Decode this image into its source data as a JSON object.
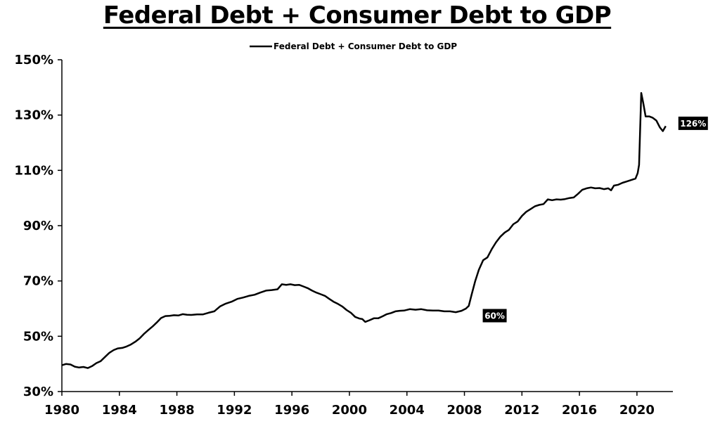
{
  "chart_data": {
    "type": "line",
    "title": "Federal Debt + Consumer Debt to GDP",
    "xlabel": "",
    "ylabel": "",
    "xlim": [
      1980,
      2022.5
    ],
    "ylim": [
      30,
      150
    ],
    "x_ticks": [
      1980,
      1984,
      1988,
      1992,
      1996,
      2000,
      2004,
      2008,
      2012,
      2016,
      2020
    ],
    "x_tick_labels": [
      "1980",
      "1984",
      "1988",
      "1992",
      "1996",
      "2000",
      "2004",
      "2008",
      "2012",
      "2016",
      "2020"
    ],
    "y_ticks": [
      30,
      50,
      70,
      90,
      110,
      130,
      150
    ],
    "y_tick_labels": [
      "30%",
      "50%",
      "70%",
      "90%",
      "110%",
      "130%",
      "150%"
    ],
    "grid": false,
    "legend": {
      "position": "top-center"
    },
    "series": [
      {
        "name": "Federal Debt + Consumer Debt to GDP",
        "color": "#000000",
        "points": [
          [
            1980.0,
            39.5
          ],
          [
            1980.3,
            40.0
          ],
          [
            1980.6,
            39.8
          ],
          [
            1980.9,
            39.0
          ],
          [
            1981.2,
            38.7
          ],
          [
            1981.5,
            38.9
          ],
          [
            1981.8,
            38.5
          ],
          [
            1982.1,
            39.2
          ],
          [
            1982.4,
            40.3
          ],
          [
            1982.7,
            41.0
          ],
          [
            1983.0,
            42.5
          ],
          [
            1983.3,
            44.0
          ],
          [
            1983.6,
            45.0
          ],
          [
            1983.9,
            45.6
          ],
          [
            1984.2,
            45.8
          ],
          [
            1984.5,
            46.3
          ],
          [
            1984.8,
            47.0
          ],
          [
            1985.1,
            48.0
          ],
          [
            1985.4,
            49.2
          ],
          [
            1985.7,
            50.8
          ],
          [
            1986.0,
            52.2
          ],
          [
            1986.3,
            53.5
          ],
          [
            1986.6,
            55.0
          ],
          [
            1986.9,
            56.6
          ],
          [
            1987.2,
            57.3
          ],
          [
            1987.5,
            57.4
          ],
          [
            1987.8,
            57.6
          ],
          [
            1988.1,
            57.5
          ],
          [
            1988.4,
            58.0
          ],
          [
            1988.7,
            57.8
          ],
          [
            1989.0,
            57.7
          ],
          [
            1989.4,
            57.9
          ],
          [
            1989.8,
            57.9
          ],
          [
            1990.2,
            58.5
          ],
          [
            1990.6,
            59.0
          ],
          [
            1991.0,
            60.8
          ],
          [
            1991.4,
            61.8
          ],
          [
            1991.8,
            62.5
          ],
          [
            1992.2,
            63.5
          ],
          [
            1992.6,
            64.0
          ],
          [
            1993.0,
            64.6
          ],
          [
            1993.4,
            65.0
          ],
          [
            1993.8,
            65.8
          ],
          [
            1994.2,
            66.5
          ],
          [
            1994.6,
            66.7
          ],
          [
            1995.0,
            67.0
          ],
          [
            1995.3,
            68.8
          ],
          [
            1995.6,
            68.6
          ],
          [
            1995.9,
            68.8
          ],
          [
            1996.2,
            68.5
          ],
          [
            1996.5,
            68.6
          ],
          [
            1996.8,
            68.0
          ],
          [
            1997.1,
            67.4
          ],
          [
            1997.4,
            66.5
          ],
          [
            1997.7,
            65.8
          ],
          [
            1998.0,
            65.2
          ],
          [
            1998.3,
            64.6
          ],
          [
            1998.6,
            63.5
          ],
          [
            1998.9,
            62.5
          ],
          [
            1999.2,
            61.7
          ],
          [
            1999.5,
            60.8
          ],
          [
            1999.8,
            59.5
          ],
          [
            2000.1,
            58.5
          ],
          [
            2000.4,
            57.0
          ],
          [
            2000.7,
            56.4
          ],
          [
            2000.9,
            56.2
          ],
          [
            2001.1,
            55.2
          ],
          [
            2001.4,
            55.8
          ],
          [
            2001.7,
            56.5
          ],
          [
            2002.0,
            56.5
          ],
          [
            2002.3,
            57.2
          ],
          [
            2002.6,
            58.0
          ],
          [
            2002.9,
            58.4
          ],
          [
            2003.2,
            59.0
          ],
          [
            2003.5,
            59.2
          ],
          [
            2003.8,
            59.3
          ],
          [
            2004.2,
            59.8
          ],
          [
            2004.6,
            59.6
          ],
          [
            2005.0,
            59.8
          ],
          [
            2005.4,
            59.4
          ],
          [
            2005.8,
            59.3
          ],
          [
            2006.2,
            59.3
          ],
          [
            2006.6,
            59.0
          ],
          [
            2007.0,
            59.0
          ],
          [
            2007.4,
            58.7
          ],
          [
            2007.8,
            59.2
          ],
          [
            2008.1,
            60.0
          ],
          [
            2008.3,
            61.0
          ],
          [
            2008.5,
            65.0
          ],
          [
            2008.75,
            70.0
          ],
          [
            2009.0,
            74.0
          ],
          [
            2009.3,
            77.5
          ],
          [
            2009.6,
            78.5
          ],
          [
            2009.9,
            81.5
          ],
          [
            2010.2,
            84.0
          ],
          [
            2010.5,
            86.0
          ],
          [
            2010.8,
            87.5
          ],
          [
            2011.1,
            88.5
          ],
          [
            2011.4,
            90.5
          ],
          [
            2011.7,
            91.5
          ],
          [
            2012.0,
            93.5
          ],
          [
            2012.3,
            95.0
          ],
          [
            2012.6,
            96.0
          ],
          [
            2012.9,
            97.0
          ],
          [
            2013.2,
            97.5
          ],
          [
            2013.5,
            97.8
          ],
          [
            2013.8,
            99.5
          ],
          [
            2014.1,
            99.2
          ],
          [
            2014.4,
            99.5
          ],
          [
            2014.7,
            99.4
          ],
          [
            2015.0,
            99.6
          ],
          [
            2015.3,
            100.0
          ],
          [
            2015.6,
            100.2
          ],
          [
            2015.9,
            101.5
          ],
          [
            2016.2,
            103.0
          ],
          [
            2016.5,
            103.5
          ],
          [
            2016.8,
            103.8
          ],
          [
            2017.1,
            103.5
          ],
          [
            2017.4,
            103.6
          ],
          [
            2017.7,
            103.2
          ],
          [
            2018.0,
            103.5
          ],
          [
            2018.2,
            102.8
          ],
          [
            2018.4,
            104.5
          ],
          [
            2018.7,
            104.8
          ],
          [
            2019.0,
            105.5
          ],
          [
            2019.3,
            106.0
          ],
          [
            2019.6,
            106.5
          ],
          [
            2019.9,
            107.0
          ],
          [
            2020.05,
            109.0
          ],
          [
            2020.15,
            112.0
          ],
          [
            2020.3,
            138.0
          ],
          [
            2020.45,
            134.0
          ],
          [
            2020.6,
            129.5
          ],
          [
            2020.85,
            129.5
          ],
          [
            2021.1,
            129.0
          ],
          [
            2021.35,
            128.0
          ],
          [
            2021.6,
            125.5
          ],
          [
            2021.8,
            124.2
          ],
          [
            2022.0,
            126.0
          ]
        ]
      }
    ],
    "annotations": [
      {
        "text": "60%",
        "x": 2008.1,
        "y": 60
      },
      {
        "text": "126%",
        "x": 2022.0,
        "y": 126
      }
    ]
  }
}
